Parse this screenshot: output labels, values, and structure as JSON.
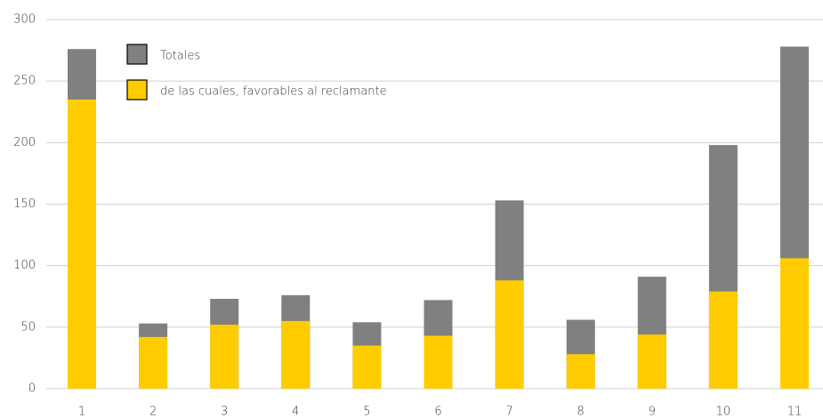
{
  "chart_data": {
    "type": "bar",
    "barmode": "overlay",
    "categories": [
      "1",
      "2",
      "3",
      "4",
      "5",
      "6",
      "7",
      "8",
      "9",
      "10",
      "11"
    ],
    "series": [
      {
        "name": "Totales",
        "color": "#808080",
        "values": [
          276,
          53,
          73,
          76,
          54,
          72,
          153,
          56,
          91,
          198,
          278
        ]
      },
      {
        "name": "de las cuales, favorables al reclamante",
        "color": "#ffcc00",
        "values": [
          235,
          42,
          52,
          55,
          35,
          43,
          88,
          28,
          44,
          79,
          106
        ]
      }
    ],
    "ylim": [
      0,
      300
    ],
    "yticks": [
      0,
      50,
      100,
      150,
      200,
      250,
      300
    ],
    "grid": true,
    "legend": "top-left"
  }
}
